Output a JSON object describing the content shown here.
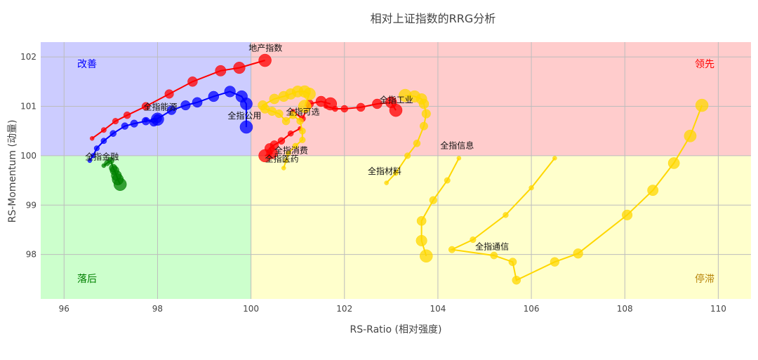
{
  "chart_data": {
    "type": "scatter",
    "title": "相对上证指数的RRG分析",
    "xlabel": "RS-Ratio (相对强度)",
    "ylabel": "RS-Momentum (动量)",
    "xlim": [
      95.5,
      110.7
    ],
    "ylim": [
      97.1,
      102.3
    ],
    "center": [
      100,
      100
    ],
    "x_ticks": [
      96,
      98,
      100,
      102,
      104,
      106,
      108,
      110
    ],
    "y_ticks": [
      98,
      99,
      100,
      101,
      102
    ],
    "grid": true,
    "quadrants": [
      {
        "id": "improving",
        "label": "改善",
        "color": "#0000ff",
        "fill": "#ccccff"
      },
      {
        "id": "leading",
        "label": "领先",
        "color": "#ff0000",
        "fill": "#ffcccc"
      },
      {
        "id": "lagging",
        "label": "落后",
        "color": "#008000",
        "fill": "#ccffcc"
      },
      {
        "id": "weakening",
        "label": "停滞",
        "color": "#b8860b",
        "fill": "#ffffcc"
      }
    ],
    "series": [
      {
        "name": "地产指数",
        "color": "#ff0000",
        "x": [
          96.6,
          96.85,
          97.1,
          97.35,
          97.75,
          98.25,
          98.75,
          99.35,
          99.75,
          100.3
        ],
        "y": [
          100.35,
          100.52,
          100.7,
          100.82,
          101.0,
          101.25,
          101.5,
          101.72,
          101.78,
          101.93
        ]
      },
      {
        "name": "全指能源",
        "color": "#0000ff",
        "x": [
          96.55,
          96.62,
          96.7,
          96.85,
          97.05,
          97.3,
          97.5,
          97.75,
          98.0,
          98.3,
          98.6,
          98.85,
          99.2,
          99.55,
          99.8,
          99.9,
          99.9
        ],
        "y": [
          99.9,
          100.0,
          100.15,
          100.3,
          100.45,
          100.6,
          100.65,
          100.7,
          100.75,
          100.92,
          101.02,
          101.08,
          101.2,
          101.3,
          101.2,
          101.05,
          100.58
        ]
      },
      {
        "name": "全指公用",
        "color": "#0000ff",
        "x": [
          97.75,
          97.92,
          98.0
        ],
        "y": [
          100.72,
          100.68,
          100.74
        ]
      },
      {
        "name": "全指金融",
        "color": "#008000",
        "x": [
          96.85,
          96.92,
          97.0,
          97.05,
          97.08,
          97.12,
          97.15,
          97.2
        ],
        "y": [
          99.8,
          99.85,
          99.9,
          99.75,
          99.7,
          99.6,
          99.52,
          99.42
        ]
      },
      {
        "name": "全指消费",
        "color": "#ff0000",
        "x": [
          101.05,
          100.85,
          100.65,
          100.5,
          100.4,
          100.45,
          100.3
        ],
        "y": [
          100.55,
          100.45,
          100.3,
          100.22,
          100.15,
          100.05,
          100.0
        ]
      },
      {
        "name": "全指可选",
        "color": "#ff0000",
        "x": [
          101.6,
          101.8,
          102.0,
          102.35,
          102.7,
          103.0,
          103.1
        ],
        "y": [
          101.0,
          100.95,
          100.95,
          100.98,
          101.05,
          101.08,
          100.92
        ]
      },
      {
        "name": "全指工业",
        "color": "#ff0000",
        "x": [
          100.9,
          101.1,
          101.25,
          101.5,
          101.7
        ],
        "y": [
          100.9,
          100.75,
          101.05,
          101.1,
          101.05
        ]
      },
      {
        "name": "全指医药",
        "color": "#ffd700",
        "x": [
          100.7,
          100.75,
          100.8,
          100.95,
          101.1,
          101.1,
          101.05,
          100.9,
          100.75,
          100.6,
          100.45,
          100.3,
          100.25,
          100.5,
          100.7,
          100.85,
          101.0,
          101.15,
          101.25,
          101.15
        ],
        "y": [
          99.75,
          99.9,
          100.05,
          100.2,
          100.32,
          100.5,
          100.7,
          100.82,
          100.7,
          100.85,
          100.9,
          100.95,
          101.02,
          101.15,
          101.2,
          101.25,
          101.3,
          101.3,
          101.25,
          101.0
        ]
      },
      {
        "name": "全指材料",
        "color": "#ffd700",
        "x": [
          102.9,
          103.1,
          103.35,
          103.55,
          103.7,
          103.75,
          103.7,
          103.65,
          103.5,
          103.3
        ],
        "y": [
          99.45,
          99.65,
          100.0,
          100.25,
          100.6,
          100.85,
          101.05,
          101.15,
          101.2,
          101.22
        ]
      },
      {
        "name": "全指信息",
        "color": "#ffd700",
        "x": [
          104.45,
          104.2,
          103.9,
          103.65,
          103.65,
          103.75
        ],
        "y": [
          99.95,
          99.5,
          99.1,
          98.68,
          98.28,
          97.97
        ]
      },
      {
        "name": "全指通信",
        "color": "#ffd700",
        "x": [
          106.5,
          106.0,
          105.45,
          104.75,
          104.3,
          105.2,
          105.6,
          105.68,
          106.5,
          107.0,
          108.05,
          108.6,
          109.05,
          109.4,
          109.65
        ],
        "y": [
          99.95,
          99.35,
          98.8,
          98.3,
          98.1,
          97.98,
          97.85,
          97.48,
          97.85,
          98.02,
          98.8,
          99.3,
          99.85,
          100.4,
          101.02
        ]
      }
    ],
    "labels": [
      {
        "text": "地产指数",
        "x": 99.95,
        "y": 102.12
      },
      {
        "text": "全指能源",
        "x": 97.7,
        "y": 100.93
      },
      {
        "text": "全指公用",
        "x": 99.5,
        "y": 100.75
      },
      {
        "text": "全指金融",
        "x": 96.45,
        "y": 99.92
      },
      {
        "text": "全指消费",
        "x": 100.5,
        "y": 100.05
      },
      {
        "text": "全指医药",
        "x": 100.3,
        "y": 99.88
      },
      {
        "text": "全指可选",
        "x": 100.75,
        "y": 100.83
      },
      {
        "text": "全指工业",
        "x": 102.75,
        "y": 101.07
      },
      {
        "text": "全指材料",
        "x": 102.5,
        "y": 99.63
      },
      {
        "text": "全指信息",
        "x": 104.05,
        "y": 100.15
      },
      {
        "text": "全指通信",
        "x": 104.8,
        "y": 98.1
      }
    ]
  }
}
